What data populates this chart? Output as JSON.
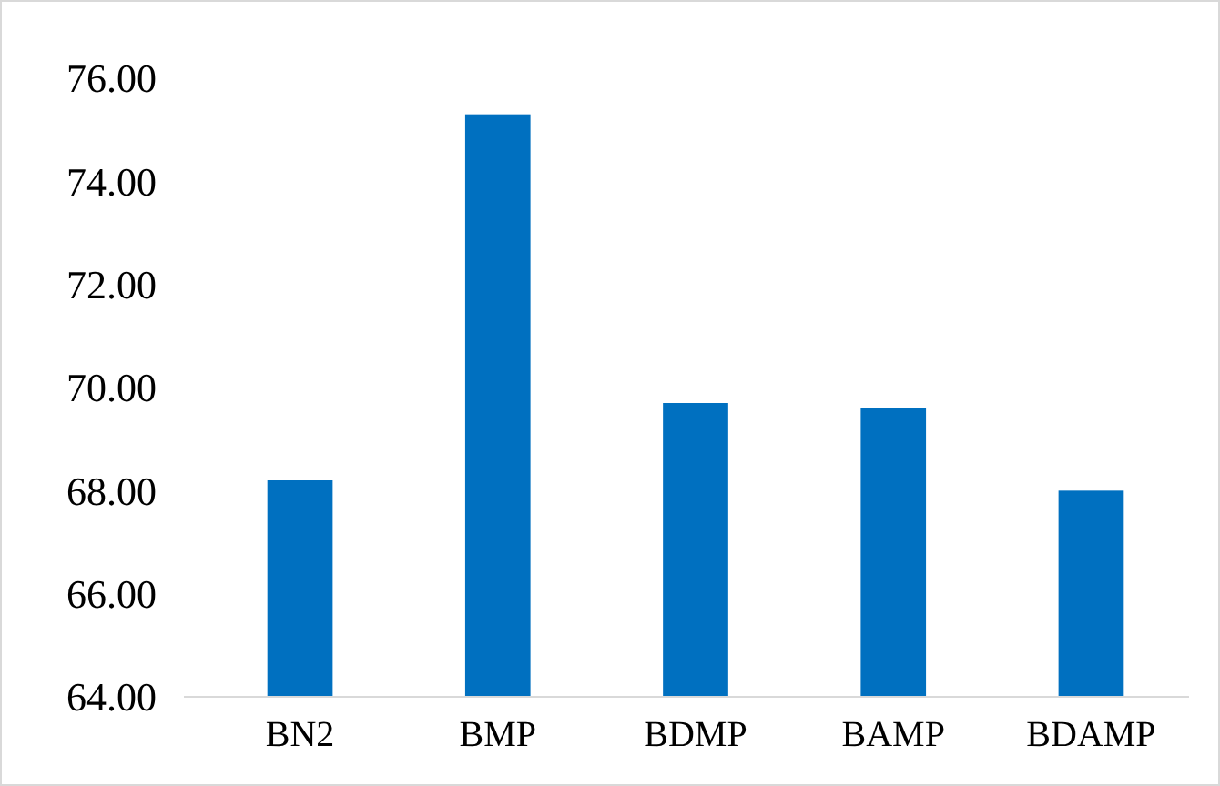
{
  "chart_data": {
    "type": "bar",
    "categories": [
      "BN2",
      "BMP",
      "BDMP",
      "BAMP",
      "BDAMP"
    ],
    "values": [
      68.2,
      75.3,
      69.7,
      69.6,
      68.0
    ],
    "color": "#0070c0",
    "ylim": [
      64,
      76
    ],
    "yticks": [
      {
        "value": 64,
        "label": "64.00"
      },
      {
        "value": 66,
        "label": "66.00"
      },
      {
        "value": 68,
        "label": "68.00"
      },
      {
        "value": 70,
        "label": "70.00"
      },
      {
        "value": 72,
        "label": "72.00"
      },
      {
        "value": 74,
        "label": "74.00"
      },
      {
        "value": 76,
        "label": "76.00"
      }
    ],
    "grid": false
  }
}
